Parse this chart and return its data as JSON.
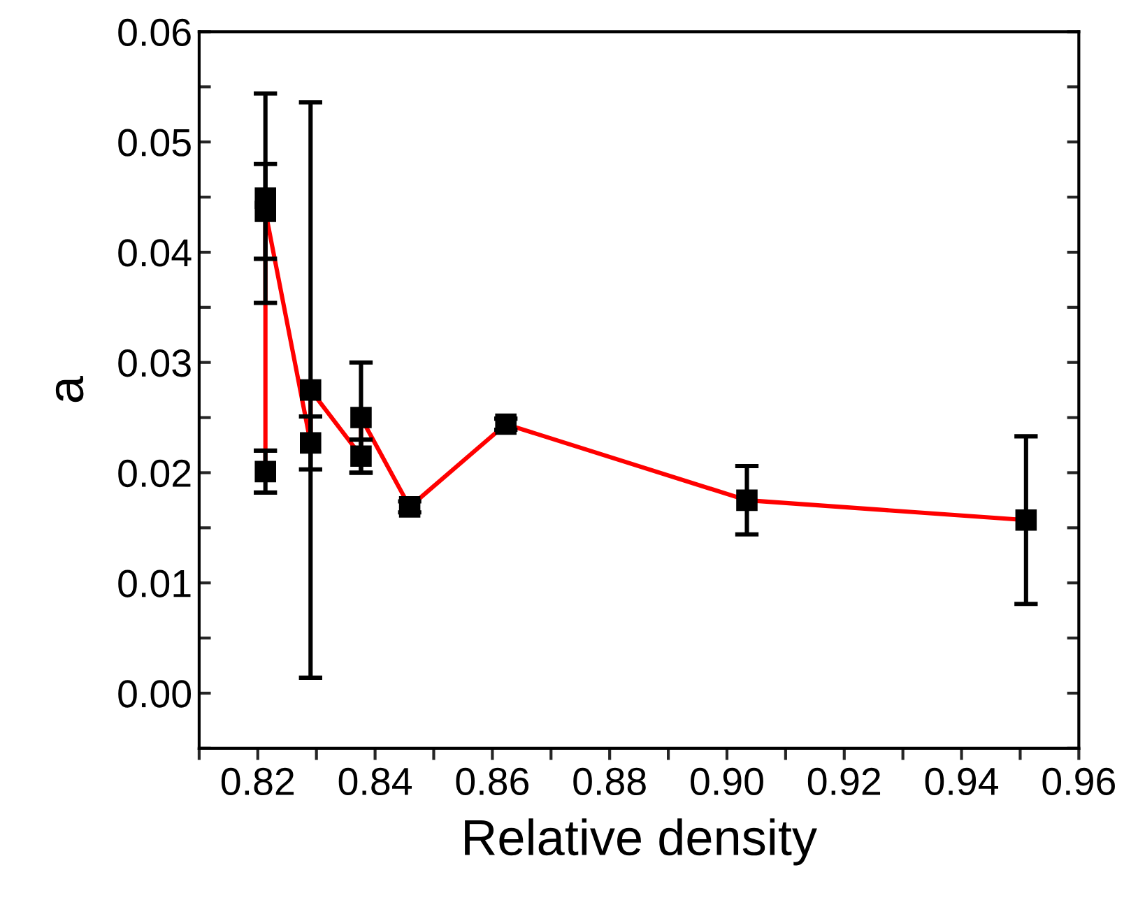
{
  "chart_data": {
    "type": "line",
    "xlabel": "Relative density",
    "ylabel": "a",
    "x": [
      0.8213,
      0.8213,
      0.8213,
      0.829,
      0.829,
      0.8376,
      0.8376,
      0.8459,
      0.8623,
      0.9034,
      0.951
    ],
    "series": [
      {
        "color": "#ff0000",
        "values": [
          0.0201,
          0.0449,
          0.0437,
          0.0227,
          0.0275,
          0.0215,
          0.025,
          0.0169,
          0.0244,
          0.0175,
          0.0157
        ],
        "colors": [
          "#000000",
          "#000000",
          "#000000",
          "#000000",
          "#000000",
          "#000000",
          "#000000",
          "#000000",
          "#000000",
          "#000000",
          "#000000"
        ],
        "errors": [
          0.0019,
          0.0095,
          0.0043,
          0.0024,
          0.0261,
          0.0015,
          0.005,
          0.0005,
          0.0005,
          0.0031,
          0.0076
        ]
      }
    ],
    "marker": "square",
    "line_style": "solid",
    "grid": false,
    "legend": false,
    "xlim": [
      0.81,
      0.96
    ],
    "ylim": [
      -0.005,
      0.06
    ],
    "xticks": [
      {
        "value": 0.81,
        "label": null
      },
      0.82,
      {
        "value": 0.83,
        "label": null
      },
      0.84,
      {
        "value": 0.85,
        "label": null
      },
      0.86,
      {
        "value": 0.87,
        "label": null
      },
      0.88,
      {
        "value": 0.89,
        "label": null
      },
      {
        "value": 0.9,
        "label": "0.90"
      },
      {
        "value": 0.91,
        "label": null
      },
      0.92,
      {
        "value": 0.93,
        "label": null
      },
      0.94,
      {
        "value": 0.95,
        "label": null
      },
      0.96
    ],
    "yticks": [
      {
        "value": -0.005,
        "label": null
      },
      {
        "value": 0,
        "label": "0.00"
      },
      {
        "value": 0.005,
        "label": null
      },
      0.01,
      {
        "value": 0.015,
        "label": null
      },
      0.02,
      {
        "value": 0.025,
        "label": null
      },
      0.03,
      {
        "value": 0.035,
        "label": null
      },
      0.04,
      {
        "value": 0.045,
        "label": null
      },
      0.05,
      {
        "value": 0.055,
        "label": null
      },
      0.06
    ]
  }
}
